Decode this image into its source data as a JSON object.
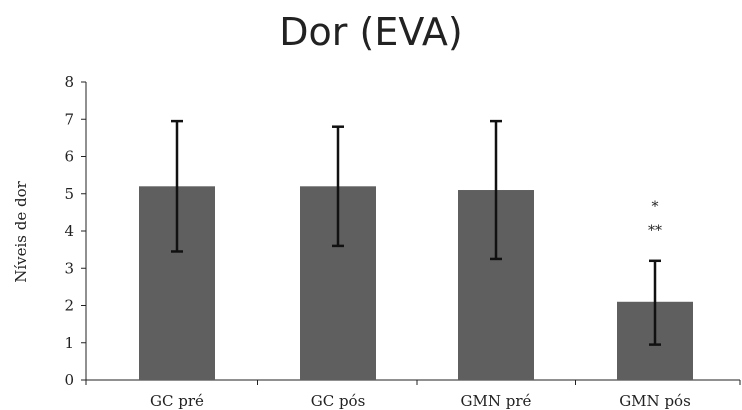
{
  "chart_data": {
    "type": "bar",
    "title": "Dor (EVA)",
    "xlabel": "",
    "ylabel": "Níveis de dor",
    "categories": [
      "GC pré",
      "GC pós",
      "GMN pré",
      "GMN pós"
    ],
    "values": [
      5.2,
      5.2,
      5.1,
      2.1
    ],
    "error_low": [
      3.45,
      3.6,
      3.25,
      0.95
    ],
    "error_high": [
      6.95,
      6.8,
      6.95,
      3.2
    ],
    "annotations": [
      {
        "category": "GMN pós",
        "lines": [
          "*",
          "**"
        ]
      }
    ],
    "ylim": [
      0,
      8
    ],
    "yticks": [
      0,
      1,
      2,
      3,
      4,
      5,
      6,
      7,
      8
    ],
    "grid": false,
    "bar_color": "#5f5f5f",
    "error_color": "#111111"
  }
}
